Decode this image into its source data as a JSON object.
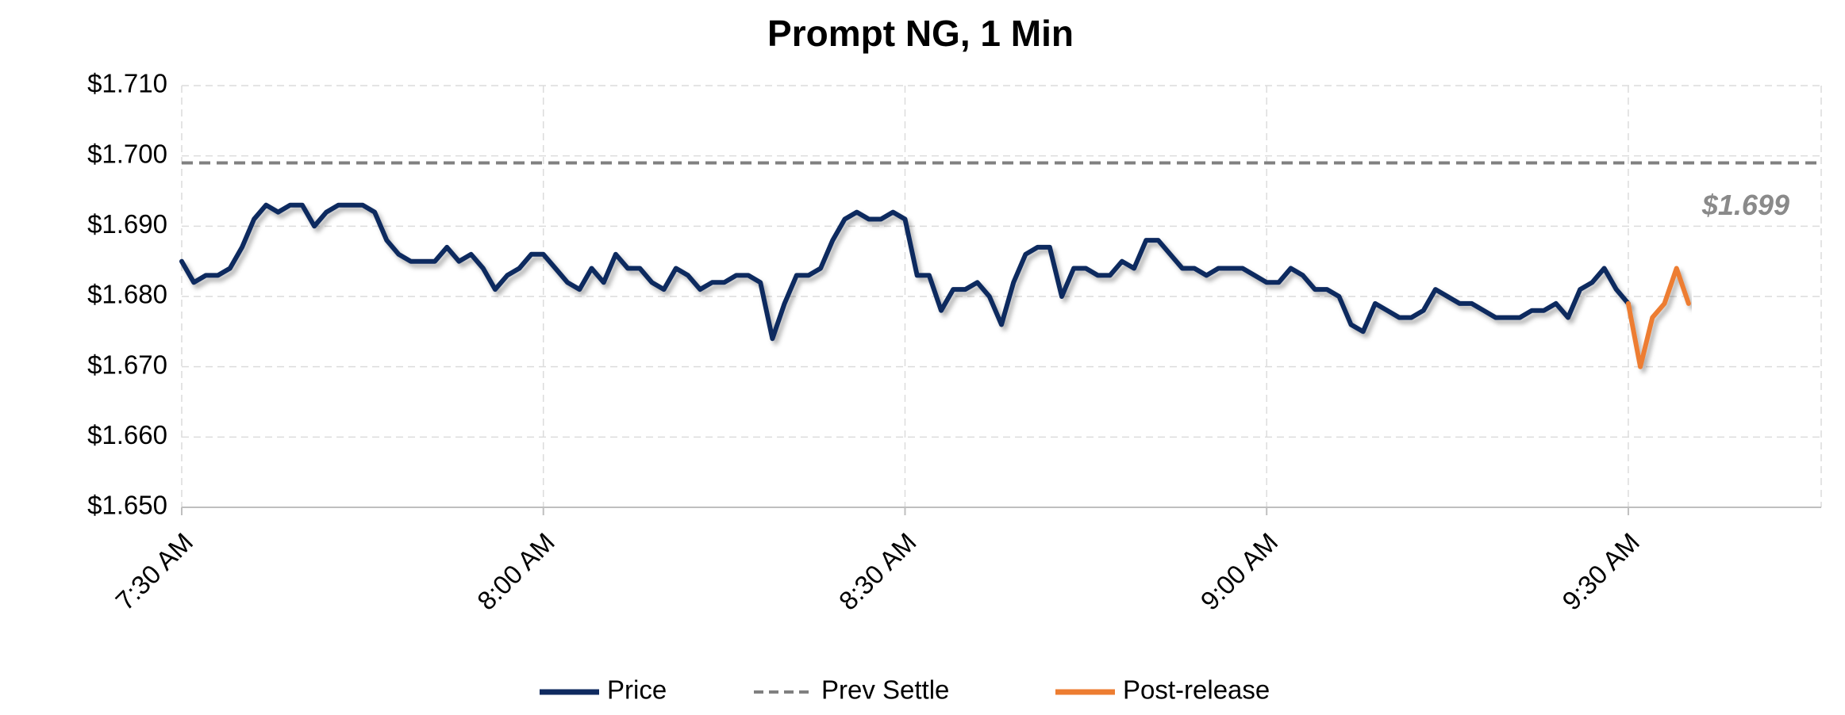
{
  "chart_data": {
    "type": "line",
    "title": "Prompt NG, 1 Min",
    "xlim": [
      "7:30 AM",
      "9:46 AM"
    ],
    "xticks": [
      "7:30 AM",
      "8:00 AM",
      "8:30 AM",
      "9:00 AM",
      "9:30 AM"
    ],
    "ylim": [
      1.65,
      1.71
    ],
    "yticks": [
      {
        "value": 1.65,
        "label": "$1.650"
      },
      {
        "value": 1.66,
        "label": "$1.660"
      },
      {
        "value": 1.67,
        "label": "$1.670"
      },
      {
        "value": 1.68,
        "label": "$1.680"
      },
      {
        "value": 1.69,
        "label": "$1.690"
      },
      {
        "value": 1.7,
        "label": "$1.700"
      },
      {
        "value": 1.71,
        "label": "$1.710"
      }
    ],
    "grid": true,
    "legend": "bottom",
    "series": [
      {
        "name": "Price",
        "color": "#0f2a5f",
        "dash": false,
        "x": [
          "7:30 AM",
          "7:31 AM",
          "7:32 AM",
          "7:33 AM",
          "7:34 AM",
          "7:35 AM",
          "7:36 AM",
          "7:37 AM",
          "7:38 AM",
          "7:39 AM",
          "7:40 AM",
          "7:41 AM",
          "7:42 AM",
          "7:43 AM",
          "7:44 AM",
          "7:45 AM",
          "7:46 AM",
          "7:47 AM",
          "7:48 AM",
          "7:49 AM",
          "7:50 AM",
          "7:51 AM",
          "7:52 AM",
          "7:53 AM",
          "7:54 AM",
          "7:55 AM",
          "7:56 AM",
          "7:57 AM",
          "7:58 AM",
          "7:59 AM",
          "8:00 AM",
          "8:01 AM",
          "8:02 AM",
          "8:03 AM",
          "8:04 AM",
          "8:05 AM",
          "8:06 AM",
          "8:07 AM",
          "8:08 AM",
          "8:09 AM",
          "8:10 AM",
          "8:11 AM",
          "8:12 AM",
          "8:13 AM",
          "8:14 AM",
          "8:15 AM",
          "8:16 AM",
          "8:17 AM",
          "8:18 AM",
          "8:19 AM",
          "8:20 AM",
          "8:21 AM",
          "8:22 AM",
          "8:23 AM",
          "8:24 AM",
          "8:25 AM",
          "8:26 AM",
          "8:27 AM",
          "8:28 AM",
          "8:29 AM",
          "8:30 AM",
          "8:31 AM",
          "8:32 AM",
          "8:33 AM",
          "8:34 AM",
          "8:35 AM",
          "8:36 AM",
          "8:37 AM",
          "8:38 AM",
          "8:39 AM",
          "8:40 AM",
          "8:41 AM",
          "8:42 AM",
          "8:43 AM",
          "8:44 AM",
          "8:45 AM",
          "8:46 AM",
          "8:47 AM",
          "8:48 AM",
          "8:49 AM",
          "8:50 AM",
          "8:51 AM",
          "8:52 AM",
          "8:53 AM",
          "8:54 AM",
          "8:55 AM",
          "8:56 AM",
          "8:57 AM",
          "8:58 AM",
          "8:59 AM",
          "9:00 AM",
          "9:01 AM",
          "9:02 AM",
          "9:03 AM",
          "9:04 AM",
          "9:05 AM",
          "9:06 AM",
          "9:07 AM",
          "9:08 AM",
          "9:09 AM",
          "9:10 AM",
          "9:11 AM",
          "9:12 AM",
          "9:13 AM",
          "9:14 AM",
          "9:15 AM",
          "9:16 AM",
          "9:17 AM",
          "9:18 AM",
          "9:19 AM",
          "9:20 AM",
          "9:21 AM",
          "9:22 AM",
          "9:23 AM",
          "9:24 AM",
          "9:25 AM",
          "9:26 AM",
          "9:27 AM",
          "9:28 AM",
          "9:29 AM",
          "9:30 AM"
        ],
        "values": [
          1.685,
          1.682,
          1.683,
          1.683,
          1.684,
          1.687,
          1.691,
          1.693,
          1.692,
          1.693,
          1.693,
          1.69,
          1.692,
          1.693,
          1.693,
          1.693,
          1.692,
          1.688,
          1.686,
          1.685,
          1.685,
          1.685,
          1.687,
          1.685,
          1.686,
          1.684,
          1.681,
          1.683,
          1.684,
          1.686,
          1.686,
          1.684,
          1.682,
          1.681,
          1.684,
          1.682,
          1.686,
          1.684,
          1.684,
          1.682,
          1.681,
          1.684,
          1.683,
          1.681,
          1.682,
          1.682,
          1.683,
          1.683,
          1.682,
          1.674,
          1.679,
          1.683,
          1.683,
          1.684,
          1.688,
          1.691,
          1.692,
          1.691,
          1.691,
          1.692,
          1.691,
          1.683,
          1.683,
          1.678,
          1.681,
          1.681,
          1.682,
          1.68,
          1.676,
          1.682,
          1.686,
          1.687,
          1.687,
          1.68,
          1.684,
          1.684,
          1.683,
          1.683,
          1.685,
          1.684,
          1.688,
          1.688,
          1.686,
          1.684,
          1.684,
          1.683,
          1.684,
          1.684,
          1.684,
          1.683,
          1.682,
          1.682,
          1.684,
          1.683,
          1.681,
          1.681,
          1.68,
          1.676,
          1.675,
          1.679,
          1.678,
          1.677,
          1.677,
          1.678,
          1.681,
          1.68,
          1.679,
          1.679,
          1.678,
          1.677,
          1.677,
          1.677,
          1.678,
          1.678,
          1.679,
          1.677,
          1.681,
          1.682,
          1.684,
          1.681,
          1.679
        ]
      },
      {
        "name": "Prev Settle",
        "color": "#808080",
        "dash": true,
        "x": [
          "7:30 AM",
          "9:46 AM"
        ],
        "values": [
          1.699,
          1.699
        ],
        "value_labels": [
          null,
          "$1.699"
        ]
      },
      {
        "name": "Post-release",
        "color": "#ed7d31",
        "dash": false,
        "x": [
          "9:30 AM",
          "9:31 AM",
          "9:32 AM",
          "9:33 AM",
          "9:34 AM",
          "9:35 AM"
        ],
        "values": [
          1.679,
          1.67,
          1.677,
          1.679,
          1.684,
          1.679
        ]
      }
    ]
  }
}
